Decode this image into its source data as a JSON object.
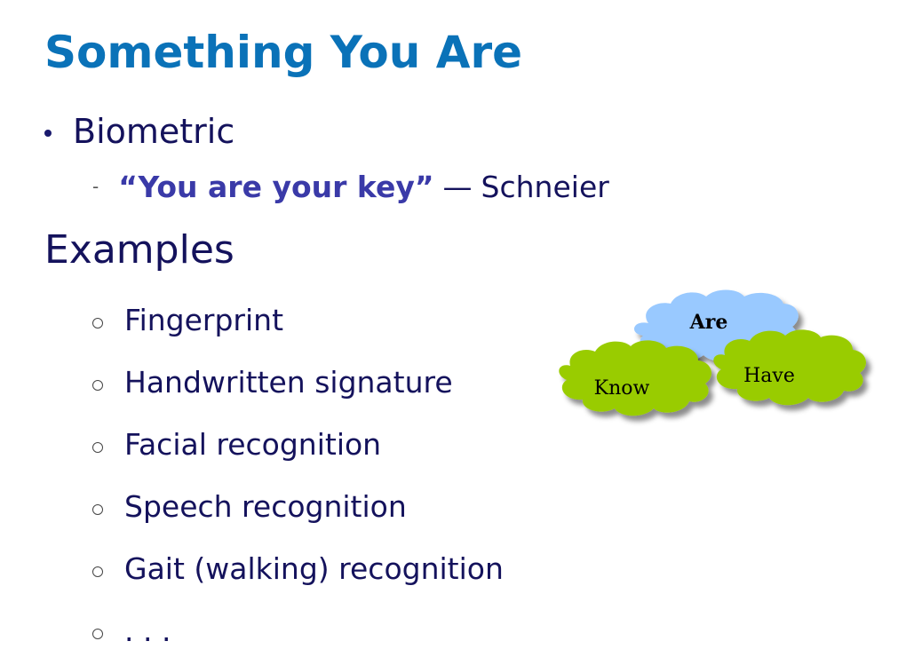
{
  "slide": {
    "title": "Something You Are",
    "bullet": "Biometric",
    "sub_bullet": {
      "dash": "-",
      "quote": "“You are your key”",
      "separator": "—",
      "author": "Schneier"
    },
    "examples_heading": "Examples",
    "examples": [
      "Fingerprint",
      "Handwritten signature",
      "Facial recognition",
      "Speech recognition",
      "Gait (walking) recognition",
      ". . ."
    ]
  },
  "diagram": {
    "clouds": [
      {
        "label": "Are",
        "color": "#99c9ff"
      },
      {
        "label": "Know",
        "color": "#99cc00"
      },
      {
        "label": "Have",
        "color": "#99cc00"
      }
    ]
  },
  "colors": {
    "title": "#0a72b8",
    "body_text": "#14125c",
    "quote": "#3a3aa8"
  }
}
